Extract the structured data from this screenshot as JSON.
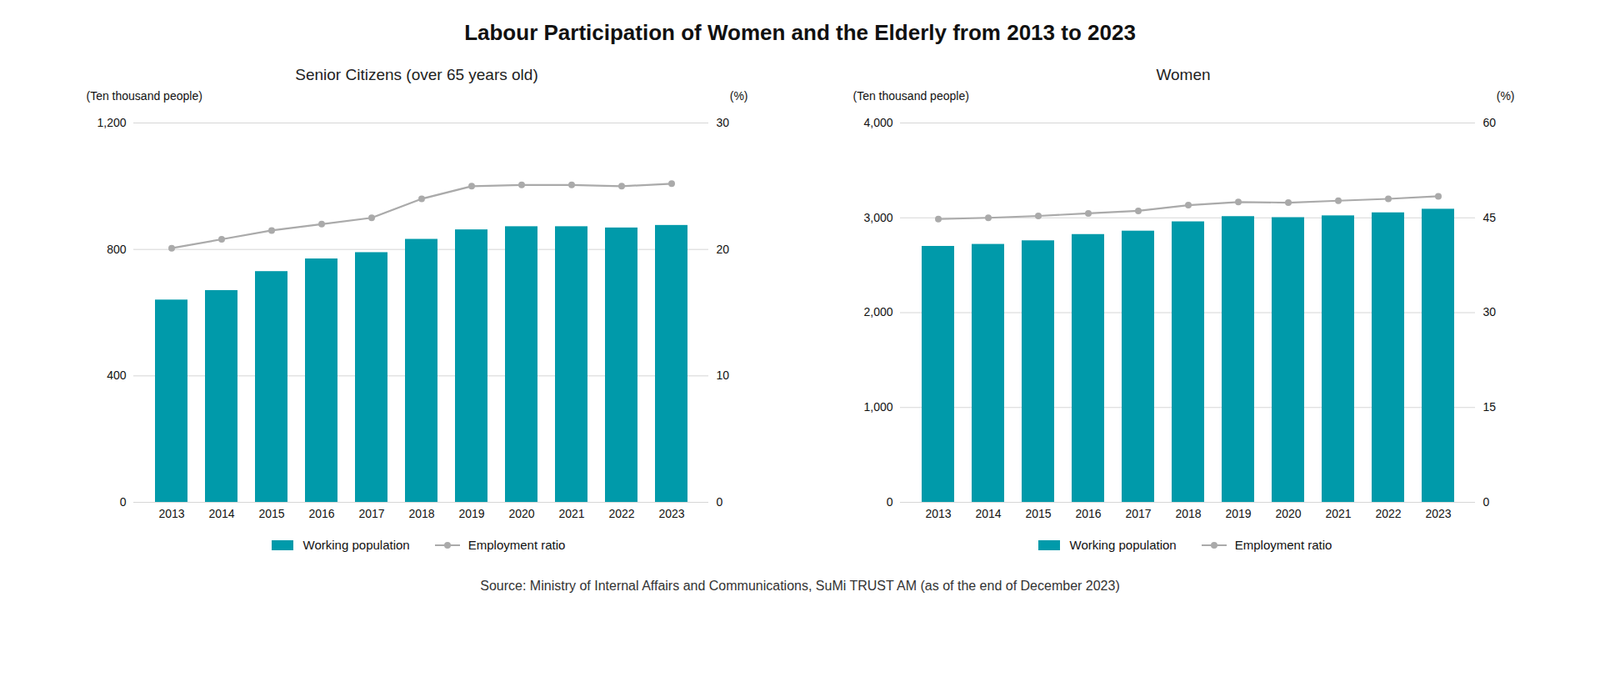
{
  "title": "Labour Participation of Women and the Elderly from 2013 to 2023",
  "source": "Source: Ministry of Internal Affairs and Communications, SuMi TRUST AM (as of the end of December 2023)",
  "chart_data": [
    {
      "type": "bar",
      "title": "Senior Citizens (over 65 years old)",
      "ylabel": "(Ten thousand people)",
      "y2label": "(%)",
      "categories": [
        "2013",
        "2014",
        "2015",
        "2016",
        "2017",
        "2018",
        "2019",
        "2020",
        "2021",
        "2022",
        "2023"
      ],
      "series": [
        {
          "name": "Working population",
          "type": "bar",
          "color": "#009aaa",
          "values": [
            640,
            670,
            730,
            770,
            790,
            832,
            862,
            872,
            872,
            868,
            876
          ]
        },
        {
          "name": "Employment ratio",
          "type": "line",
          "axis": "y2",
          "color": "#aaaaaa",
          "marker": "circle",
          "values": [
            20.1,
            20.8,
            21.5,
            22.0,
            22.5,
            24.0,
            25.0,
            25.1,
            25.1,
            25.0,
            25.2
          ]
        }
      ],
      "ylim": [
        0,
        1200
      ],
      "yticks": [
        0,
        400,
        800,
        {
          "value": 1200,
          "label": "1,200"
        }
      ],
      "y2lim": [
        0,
        30
      ],
      "y2ticks": [
        0,
        10,
        20,
        30
      ],
      "grid": true,
      "legend": "bottom"
    },
    {
      "type": "bar",
      "title": "Women",
      "ylabel": "(Ten thousand people)",
      "y2label": "(%)",
      "categories": [
        "2013",
        "2014",
        "2015",
        "2016",
        "2017",
        "2018",
        "2019",
        "2020",
        "2021",
        "2022",
        "2023"
      ],
      "series": [
        {
          "name": "Working population",
          "type": "bar",
          "color": "#009aaa",
          "values": [
            2699,
            2720,
            2758,
            2824,
            2860,
            2958,
            3013,
            3002,
            3021,
            3053,
            3091
          ]
        },
        {
          "name": "Employment ratio",
          "type": "line",
          "axis": "y2",
          "color": "#aaaaaa",
          "marker": "circle",
          "values": [
            44.8,
            45.0,
            45.3,
            45.7,
            46.1,
            47.0,
            47.5,
            47.4,
            47.7,
            48.0,
            48.4
          ]
        }
      ],
      "ylim": [
        0,
        4000
      ],
      "yticks": [
        0,
        {
          "value": 1000,
          "label": "1,000"
        },
        {
          "value": 2000,
          "label": "2,000"
        },
        {
          "value": 3000,
          "label": "3,000"
        },
        {
          "value": 4000,
          "label": "4,000"
        }
      ],
      "y2lim": [
        0,
        60
      ],
      "y2ticks": [
        0,
        15,
        30,
        45,
        60
      ],
      "grid": true,
      "legend": "bottom"
    }
  ]
}
